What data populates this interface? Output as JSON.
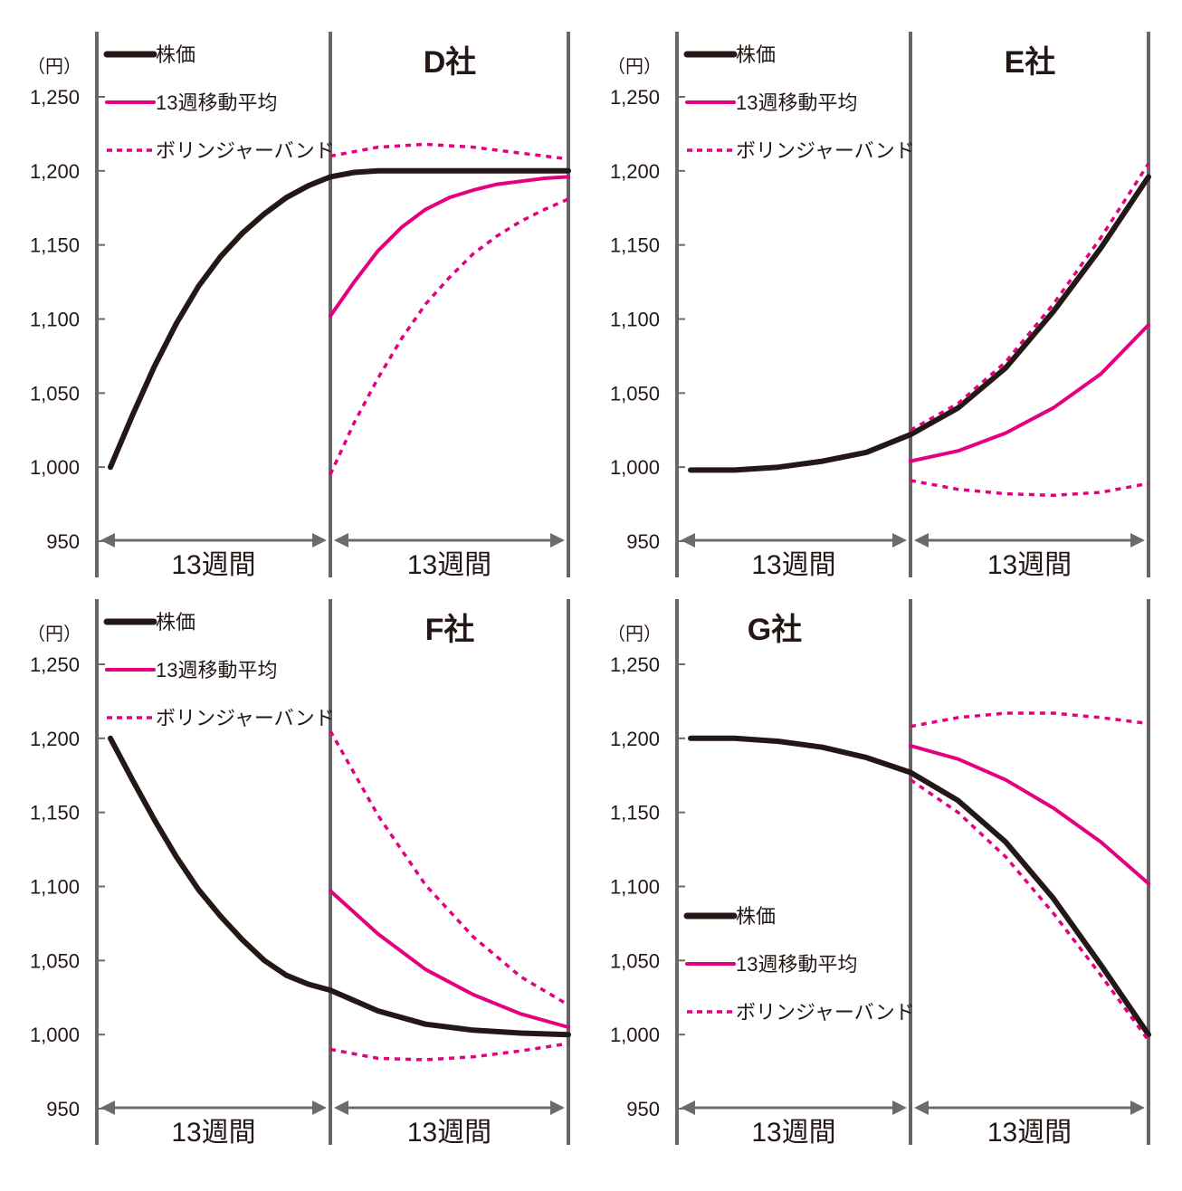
{
  "chart_data": [
    {
      "type": "line",
      "title": "D社",
      "y_unit": "（円）",
      "yticks": [
        "1,250",
        "1,200",
        "1,150",
        "1,100",
        "1,050",
        "1,000",
        "950"
      ],
      "ylim": [
        950,
        1250
      ],
      "period_labels": [
        "13週間",
        "13週間"
      ],
      "legend": [
        "株価",
        "13週移動平均",
        "ボリンジャーバンド"
      ],
      "legend_position": "top-left",
      "series": [
        {
          "name": "株価",
          "color": "#231815",
          "style": "solid",
          "x": [
            0,
            0.1,
            0.2,
            0.3,
            0.4,
            0.5,
            0.6,
            0.7,
            0.8,
            0.9,
            1.0,
            1.1,
            1.2,
            1.3,
            1.4,
            1.5,
            1.6,
            1.7,
            1.8,
            1.9,
            2.0
          ],
          "y": [
            1000,
            1035,
            1068,
            1097,
            1122,
            1142,
            1158,
            1171,
            1182,
            1190,
            1196,
            1199,
            1200,
            1200,
            1200,
            1200,
            1200,
            1200,
            1200,
            1200,
            1200
          ]
        },
        {
          "name": "13週移動平均",
          "color": "#e4007f",
          "style": "solid",
          "x": [
            1.0,
            1.1,
            1.2,
            1.3,
            1.4,
            1.5,
            1.6,
            1.7,
            1.8,
            1.9,
            2.0
          ],
          "y": [
            1102,
            1125,
            1146,
            1162,
            1174,
            1182,
            1187,
            1191,
            1193,
            1195,
            1196
          ]
        },
        {
          "name": "ボリンジャーバンド上限",
          "color": "#e4007f",
          "style": "dashed",
          "x": [
            1.0,
            1.2,
            1.4,
            1.6,
            1.8,
            2.0
          ],
          "y": [
            1210,
            1216,
            1218,
            1216,
            1212,
            1208
          ]
        },
        {
          "name": "ボリンジャーバンド下限",
          "color": "#e4007f",
          "style": "dashed",
          "x": [
            1.0,
            1.1,
            1.2,
            1.3,
            1.4,
            1.5,
            1.6,
            1.7,
            1.8,
            1.9,
            2.0
          ],
          "y": [
            995,
            1030,
            1060,
            1087,
            1110,
            1128,
            1144,
            1156,
            1166,
            1174,
            1181
          ]
        }
      ]
    },
    {
      "type": "line",
      "title": "E社",
      "y_unit": "（円）",
      "yticks": [
        "1,250",
        "1,200",
        "1,150",
        "1,100",
        "1,050",
        "1,000",
        "950"
      ],
      "ylim": [
        950,
        1250
      ],
      "period_labels": [
        "13週間",
        "13週間"
      ],
      "legend": [
        "株価",
        "13週移動平均",
        "ボリンジャーバンド"
      ],
      "legend_position": "top-left",
      "series": [
        {
          "name": "株価",
          "color": "#231815",
          "style": "solid",
          "x": [
            0,
            0.2,
            0.4,
            0.6,
            0.8,
            1.0,
            1.2,
            1.4,
            1.6,
            1.8,
            2.0
          ],
          "y": [
            998,
            998,
            1000,
            1004,
            1010,
            1022,
            1040,
            1067,
            1105,
            1148,
            1196
          ]
        },
        {
          "name": "13週移動平均",
          "color": "#e4007f",
          "style": "solid",
          "x": [
            1.0,
            1.2,
            1.4,
            1.6,
            1.8,
            2.0
          ],
          "y": [
            1004,
            1011,
            1023,
            1040,
            1063,
            1096
          ]
        },
        {
          "name": "ボリンジャーバンド上限",
          "color": "#e4007f",
          "style": "dashed",
          "x": [
            1.0,
            1.2,
            1.4,
            1.6,
            1.8,
            2.0
          ],
          "y": [
            1025,
            1043,
            1071,
            1110,
            1155,
            1205
          ]
        },
        {
          "name": "ボリンジャーバンド下限",
          "color": "#e4007f",
          "style": "dashed",
          "x": [
            1.0,
            1.2,
            1.4,
            1.6,
            1.8,
            2.0
          ],
          "y": [
            991,
            985,
            982,
            981,
            983,
            989
          ]
        }
      ]
    },
    {
      "type": "line",
      "title": "F社",
      "y_unit": "（円）",
      "yticks": [
        "1,250",
        "1,200",
        "1,150",
        "1,100",
        "1,050",
        "1,000",
        "950"
      ],
      "ylim": [
        950,
        1250
      ],
      "period_labels": [
        "13週間",
        "13週間"
      ],
      "legend": [
        "株価",
        "13週移動平均",
        "ボリンジャーバンド"
      ],
      "legend_position": "top-left",
      "series": [
        {
          "name": "株価",
          "color": "#231815",
          "style": "solid",
          "x": [
            0,
            0.1,
            0.2,
            0.3,
            0.4,
            0.5,
            0.6,
            0.7,
            0.8,
            0.9,
            1.0,
            1.2,
            1.4,
            1.6,
            1.8,
            2.0
          ],
          "y": [
            1200,
            1172,
            1145,
            1120,
            1098,
            1080,
            1064,
            1050,
            1040,
            1034,
            1030,
            1016,
            1007,
            1003,
            1001,
            1000
          ]
        },
        {
          "name": "13週移動平均",
          "color": "#e4007f",
          "style": "solid",
          "x": [
            1.0,
            1.2,
            1.4,
            1.6,
            1.8,
            2.0
          ],
          "y": [
            1097,
            1068,
            1044,
            1027,
            1014,
            1005
          ]
        },
        {
          "name": "ボリンジャーバンド上限",
          "color": "#e4007f",
          "style": "dashed",
          "x": [
            1.0,
            1.2,
            1.4,
            1.6,
            1.8,
            2.0
          ],
          "y": [
            1205,
            1148,
            1101,
            1066,
            1039,
            1020
          ]
        },
        {
          "name": "ボリンジャーバンド下限",
          "color": "#e4007f",
          "style": "dashed",
          "x": [
            1.0,
            1.2,
            1.4,
            1.6,
            1.8,
            2.0
          ],
          "y": [
            990,
            984,
            983,
            985,
            989,
            994
          ]
        }
      ]
    },
    {
      "type": "line",
      "title": "G社",
      "y_unit": "（円）",
      "yticks": [
        "1,250",
        "1,200",
        "1,150",
        "1,100",
        "1,050",
        "1,000",
        "950"
      ],
      "ylim": [
        950,
        1250
      ],
      "period_labels": [
        "13週間",
        "13週間"
      ],
      "legend": [
        "株価",
        "13週移動平均",
        "ボリンジャーバンド"
      ],
      "legend_position": "bottom-left",
      "series": [
        {
          "name": "株価",
          "color": "#231815",
          "style": "solid",
          "x": [
            0,
            0.2,
            0.4,
            0.6,
            0.8,
            1.0,
            1.2,
            1.4,
            1.6,
            1.8,
            2.0
          ],
          "y": [
            1200,
            1200,
            1198,
            1194,
            1187,
            1177,
            1158,
            1130,
            1092,
            1047,
            1000
          ]
        },
        {
          "name": "13週移動平均",
          "color": "#e4007f",
          "style": "solid",
          "x": [
            1.0,
            1.2,
            1.4,
            1.6,
            1.8,
            2.0
          ],
          "y": [
            1195,
            1186,
            1172,
            1153,
            1130,
            1102
          ]
        },
        {
          "name": "ボリンジャーバンド上限",
          "color": "#e4007f",
          "style": "dashed",
          "x": [
            1.0,
            1.2,
            1.4,
            1.6,
            1.8,
            2.0
          ],
          "y": [
            1208,
            1214,
            1217,
            1217,
            1214,
            1210
          ]
        },
        {
          "name": "ボリンジャーバンド下限",
          "color": "#e4007f",
          "style": "dashed",
          "x": [
            1.0,
            1.2,
            1.4,
            1.6,
            1.8,
            2.0
          ],
          "y": [
            1172,
            1150,
            1120,
            1082,
            1040,
            996
          ]
        }
      ]
    }
  ]
}
